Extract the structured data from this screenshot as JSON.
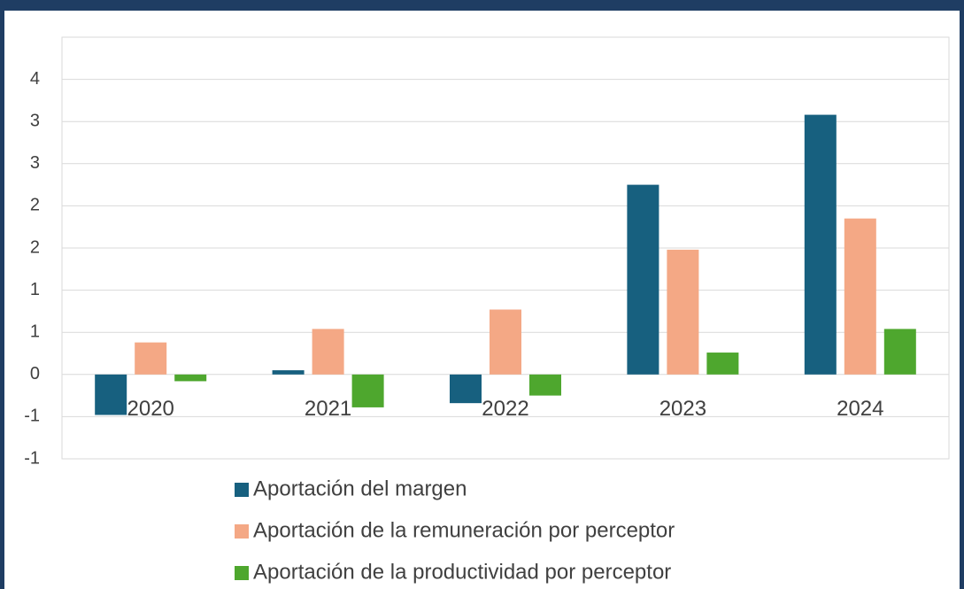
{
  "chart_data": {
    "type": "bar",
    "categories": [
      "2020",
      "2021",
      "2022",
      "2023",
      "2024"
    ],
    "series": [
      {
        "name": "Aportación del margen",
        "color": "#17607f",
        "values": [
          -0.48,
          0.05,
          -0.34,
          2.25,
          3.08
        ]
      },
      {
        "name": "Aportación de la remuneración por perceptor",
        "color": "#f4a885",
        "values": [
          0.38,
          0.54,
          0.77,
          1.48,
          1.85
        ]
      },
      {
        "name": "Aportación de la productividad por perceptor",
        "color": "#4ea72e",
        "values": [
          -0.08,
          -0.39,
          -0.25,
          0.26,
          0.54
        ]
      }
    ],
    "ylim": [
      -1,
      4
    ],
    "yticks": [
      {
        "value": -1,
        "label": "-1"
      },
      {
        "value": -0.5,
        "label": "-1"
      },
      0,
      {
        "value": 0.5,
        "label": "1"
      },
      1,
      {
        "value": 1.5,
        "label": "2"
      },
      2,
      {
        "value": 2.5,
        "label": "3"
      },
      3,
      {
        "value": 3.5,
        "label": "4"
      }
    ],
    "grid": true
  }
}
